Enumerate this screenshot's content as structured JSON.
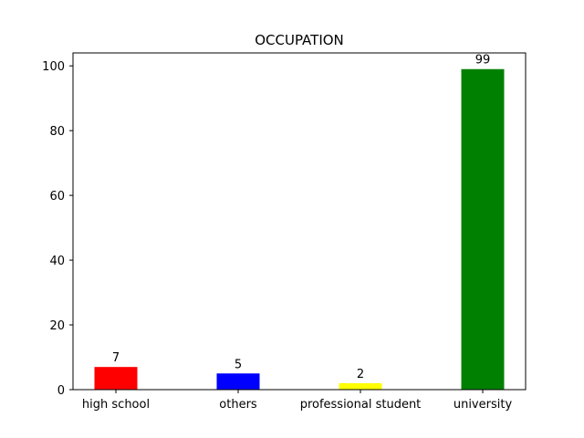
{
  "chart_data": {
    "type": "bar",
    "title": "OCCUPATION",
    "xlabel": "",
    "ylabel": "",
    "categories": [
      "high school",
      "others",
      "professional student",
      "university"
    ],
    "values": [
      7,
      5,
      2,
      99
    ],
    "colors": [
      "#ff0000",
      "#0000ff",
      "#ffff00",
      "#008000"
    ],
    "data_labels": [
      "7",
      "5",
      "2",
      "99"
    ],
    "ylim": [
      0,
      104
    ],
    "yticks": [
      0,
      20,
      40,
      60,
      80,
      100
    ],
    "ytick_labels": [
      "0",
      "20",
      "40",
      "60",
      "80",
      "100"
    ],
    "grid": false,
    "legend": "none"
  }
}
